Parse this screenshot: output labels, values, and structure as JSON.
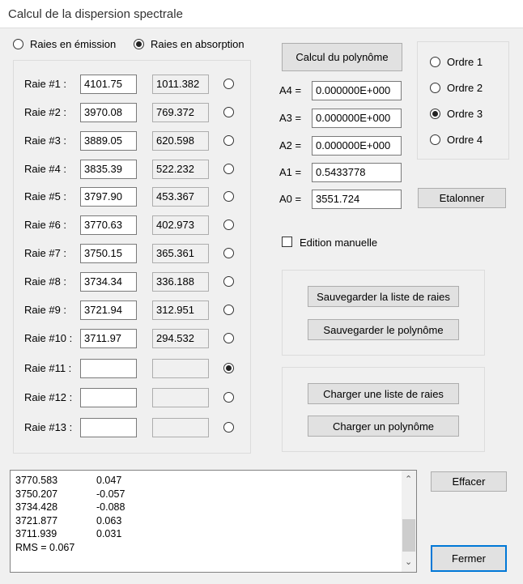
{
  "window": {
    "title": "Calcul de la dispersion spectrale"
  },
  "mode": {
    "emission_label": "Raies en émission",
    "absorption_label": "Raies en absorption",
    "selected": "absorption"
  },
  "lines": [
    {
      "label": "Raie #1 :",
      "wavelength": "4101.75",
      "pixel": "1011.382",
      "selected": false
    },
    {
      "label": "Raie #2 :",
      "wavelength": "3970.08",
      "pixel": "769.372",
      "selected": false
    },
    {
      "label": "Raie #3 :",
      "wavelength": "3889.05",
      "pixel": "620.598",
      "selected": false
    },
    {
      "label": "Raie #4 :",
      "wavelength": "3835.39",
      "pixel": "522.232",
      "selected": false
    },
    {
      "label": "Raie #5 :",
      "wavelength": "3797.90",
      "pixel": "453.367",
      "selected": false
    },
    {
      "label": "Raie #6 :",
      "wavelength": "3770.63",
      "pixel": "402.973",
      "selected": false
    },
    {
      "label": "Raie #7 :",
      "wavelength": "3750.15",
      "pixel": "365.361",
      "selected": false
    },
    {
      "label": "Raie #8 :",
      "wavelength": "3734.34",
      "pixel": "336.188",
      "selected": false
    },
    {
      "label": "Raie #9 :",
      "wavelength": "3721.94",
      "pixel": "312.951",
      "selected": false
    },
    {
      "label": "Raie #10 :",
      "wavelength": "3711.97",
      "pixel": "294.532",
      "selected": false
    },
    {
      "label": "Raie #11 :",
      "wavelength": "",
      "pixel": "",
      "selected": true
    },
    {
      "label": "Raie #12 :",
      "wavelength": "",
      "pixel": "",
      "selected": false
    },
    {
      "label": "Raie #13 :",
      "wavelength": "",
      "pixel": "",
      "selected": false
    }
  ],
  "polynomial": {
    "compute_label": "Calcul du polynôme",
    "coeffs": [
      {
        "label": "A4 =",
        "value": "0.000000E+000"
      },
      {
        "label": "A3 =",
        "value": "0.000000E+000"
      },
      {
        "label": "A2 =",
        "value": "0.000000E+000"
      },
      {
        "label": "A1 =",
        "value": "0.5433778"
      },
      {
        "label": "A0 =",
        "value": "3551.724"
      }
    ],
    "calibrate_label": "Etalonner",
    "manual_edit_label": "Edition manuelle",
    "manual_edit_checked": false
  },
  "order": {
    "options": [
      "Ordre 1",
      "Ordre 2",
      "Ordre 3",
      "Ordre 4"
    ],
    "selected": "Ordre 3"
  },
  "save": {
    "save_lines": "Sauvegarder la liste de raies",
    "save_poly": "Sauvegarder le polynôme"
  },
  "load": {
    "load_lines": "Charger une liste de raies",
    "load_poly": "Charger un polynôme"
  },
  "log": {
    "rows": [
      [
        "3770.583",
        "0.047"
      ],
      [
        "3750.207",
        "-0.057"
      ],
      [
        "3734.428",
        "-0.088"
      ],
      [
        "3721.877",
        "0.063"
      ],
      [
        "3711.939",
        "0.031"
      ]
    ],
    "rms": "RMS = 0.067"
  },
  "buttons": {
    "clear": "Effacer",
    "close": "Fermer"
  }
}
